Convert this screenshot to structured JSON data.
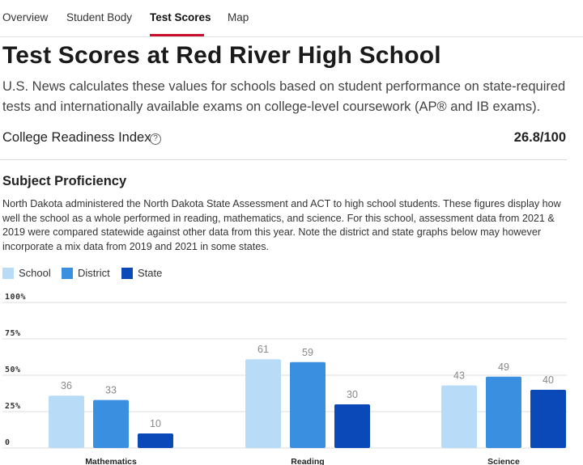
{
  "tabs": [
    {
      "label": "Overview"
    },
    {
      "label": "Student Body"
    },
    {
      "label": "Test Scores"
    },
    {
      "label": "Map"
    }
  ],
  "active_tab": "Test Scores",
  "page_title": "Test Scores at Red River High School",
  "intro_text": "U.S. News calculates these values for schools based on student performance on state-required tests and internationally available exams on college-level coursework (AP® and IB exams).",
  "college_readiness": {
    "label": "College Readiness Index",
    "help_icon": "question-circle-icon",
    "value": "26.8/100"
  },
  "subject_proficiency": {
    "title": "Subject Proficiency",
    "description": "North Dakota administered the North Dakota State Assessment and ACT to high school students. These figures display how well the school as a whole performed in reading, mathematics, and science. For this school, assessment data from 2021 & 2019 were compared statewide against other data from this year. Note the district and state graphs below may however incorporate a mix data from 2019 and 2021 in some states."
  },
  "legend": [
    {
      "name": "School",
      "color": "#b8dcf8"
    },
    {
      "name": "District",
      "color": "#3a8fe0"
    },
    {
      "name": "State",
      "color": "#0b48b8"
    }
  ],
  "chart_data": {
    "type": "bar",
    "categories": [
      "Mathematics",
      "Reading",
      "Science"
    ],
    "series": [
      {
        "name": "School",
        "values": [
          36,
          61,
          43
        ],
        "color": "#b8dcf8"
      },
      {
        "name": "District",
        "values": [
          33,
          59,
          49
        ],
        "color": "#3a8fe0"
      },
      {
        "name": "State",
        "values": [
          10,
          30,
          40
        ],
        "color": "#0b48b8"
      }
    ],
    "yticks": [
      "0",
      "25%",
      "50%",
      "75%",
      "100%"
    ],
    "ylim": [
      0,
      100
    ],
    "grid": true,
    "legend_position": "top-left"
  }
}
